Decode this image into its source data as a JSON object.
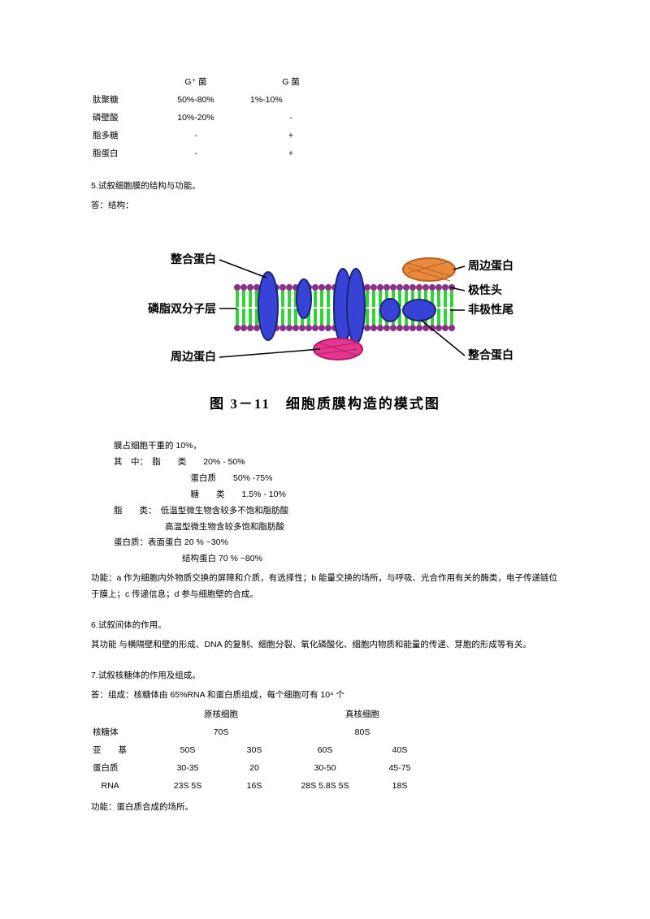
{
  "table1": {
    "headers": [
      "",
      "G⁺ 菌",
      "G 菌"
    ],
    "rows": [
      [
        "肽聚糖",
        "50%-80%",
        "1%-10%"
      ],
      [
        "磷壁酸",
        "10%-20%",
        "-"
      ],
      [
        "脂多糖",
        "-",
        "+"
      ],
      [
        "脂蛋白",
        "-",
        "+"
      ]
    ],
    "col_spacing": [
      "0px",
      "90px",
      "120px"
    ]
  },
  "q5": {
    "num": "5.",
    "title": "试叙细胞膜的结构与功能。",
    "ans_prefix": "答：结构：",
    "figure": {
      "caption": "图 3－11　细胞质膜构造的模式图",
      "labels": {
        "l_top": "整合蛋白",
        "l_mid": "磷脂双分子层",
        "l_bot": "周边蛋白",
        "r_top": "周边蛋白",
        "r_mid1": "极性头",
        "r_mid2": "非极性尾",
        "r_bot": "整合蛋白"
      },
      "colors": {
        "head": "#8a2f8a",
        "tail": "#2fd436",
        "int_fill": "#3842d6",
        "int_stroke": "#1c256f",
        "periph_top": "#e88a3d",
        "periph_bot": "#e6378f",
        "line": "#000"
      },
      "label_fontsize": 14,
      "label_weight": "bold"
    },
    "body": [
      "膜占细胞干重的 10%，",
      "其　中：　脂　　类　　20% - 50%",
      "　　　　　　　　　蛋白质　　50% -75%",
      "　　　　　　　　　糖　　类　　1.5% - 10%",
      "脂　　类：　低温型微生物含较多不饱和脂肪酸",
      "　　　　　　高温型微生物含较多饱和脂肪酸",
      "蛋白质：表面蛋白 20 % ~30%",
      "　　　　　　　　结构蛋白 70 % ~80%"
    ],
    "func": "功能：a 作为细胞内外物质交换的屏障和介质，有选择性；b 能量交换的场所，与呼吸、光合作用有关的酶类，电子传递链位于膜上；c 传递信息；d 参与细胞壁的合成。"
  },
  "q6": {
    "num": "6.",
    "title": "试叙间体的作用。",
    "body": "其功能 与横隔壁和壁的形成、DNA 的复制、细胞分裂、氧化磷酸化、细胞内物质和能量的传递、芽胞的形成等有关。"
  },
  "q7": {
    "num": "7.",
    "title": "试叙核糖体的作用及组成。",
    "ans": "答：组成：核糖体由 65%RNA 和蛋白质组成，每个细胞可有 10⁴ 个",
    "table": {
      "headers": [
        "",
        "原核细胞",
        "",
        "真核细胞",
        ""
      ],
      "rows": [
        [
          "核糖体",
          "70S",
          "",
          "80S",
          ""
        ],
        [
          "亚　　基",
          "50S",
          "30S",
          "60S",
          "40S"
        ],
        [
          "蛋白质",
          "30-35",
          "20",
          "30-50",
          "45-75"
        ],
        [
          "　RNA",
          "23S  5S",
          "16S",
          "28S  5.8S  5S",
          "18S"
        ]
      ]
    },
    "func": "功能：蛋白质合成的场所。"
  }
}
